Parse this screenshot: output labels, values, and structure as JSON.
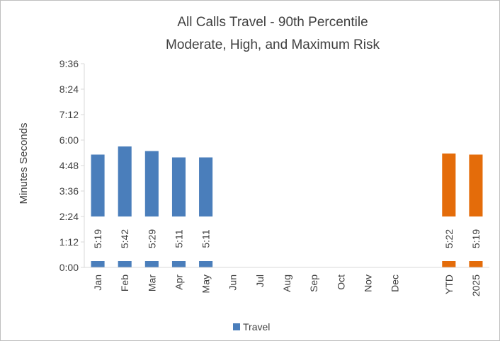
{
  "chart_data": {
    "type": "bar",
    "title": [
      "All Calls Travel - 90th Percentile",
      "Moderate, High, and Maximum Risk"
    ],
    "xlabel": "",
    "ylabel": "Minutes Seconds",
    "y_unit": "seconds",
    "ylim": [
      0,
      576
    ],
    "y_ticks": [
      {
        "value": 0,
        "label": "0:00"
      },
      {
        "value": 72,
        "label": "1:12"
      },
      {
        "value": 144,
        "label": "2:24"
      },
      {
        "value": 216,
        "label": "3:36"
      },
      {
        "value": 288,
        "label": "4:48"
      },
      {
        "value": 360,
        "label": "6:00"
      },
      {
        "value": 432,
        "label": "7:12"
      },
      {
        "value": 504,
        "label": "8:24"
      },
      {
        "value": 576,
        "label": "9:36"
      }
    ],
    "categories": [
      "Jan",
      "Feb",
      "Mar",
      "Apr",
      "May",
      "Jun",
      "Jul",
      "Aug",
      "Sep",
      "Oct",
      "Nov",
      "Dec",
      "",
      "YTD",
      "2025"
    ],
    "values": [
      319,
      342,
      329,
      311,
      311,
      null,
      null,
      null,
      null,
      null,
      null,
      null,
      null,
      322,
      319
    ],
    "data_labels": [
      "5:19",
      "5:42",
      "5:29",
      "5:11",
      "5:11",
      "",
      "",
      "",
      "",
      "",
      "",
      "",
      "",
      "5:22",
      "5:19"
    ],
    "colors": [
      "#4a7ebb",
      "#4a7ebb",
      "#4a7ebb",
      "#4a7ebb",
      "#4a7ebb",
      "#4a7ebb",
      "#4a7ebb",
      "#4a7ebb",
      "#4a7ebb",
      "#4a7ebb",
      "#4a7ebb",
      "#4a7ebb",
      "#4a7ebb",
      "#e46c0a",
      "#e46c0a"
    ],
    "series": [
      {
        "name": "Travel",
        "color": "#4a7ebb"
      }
    ],
    "grid": false,
    "legend": "bottom"
  }
}
